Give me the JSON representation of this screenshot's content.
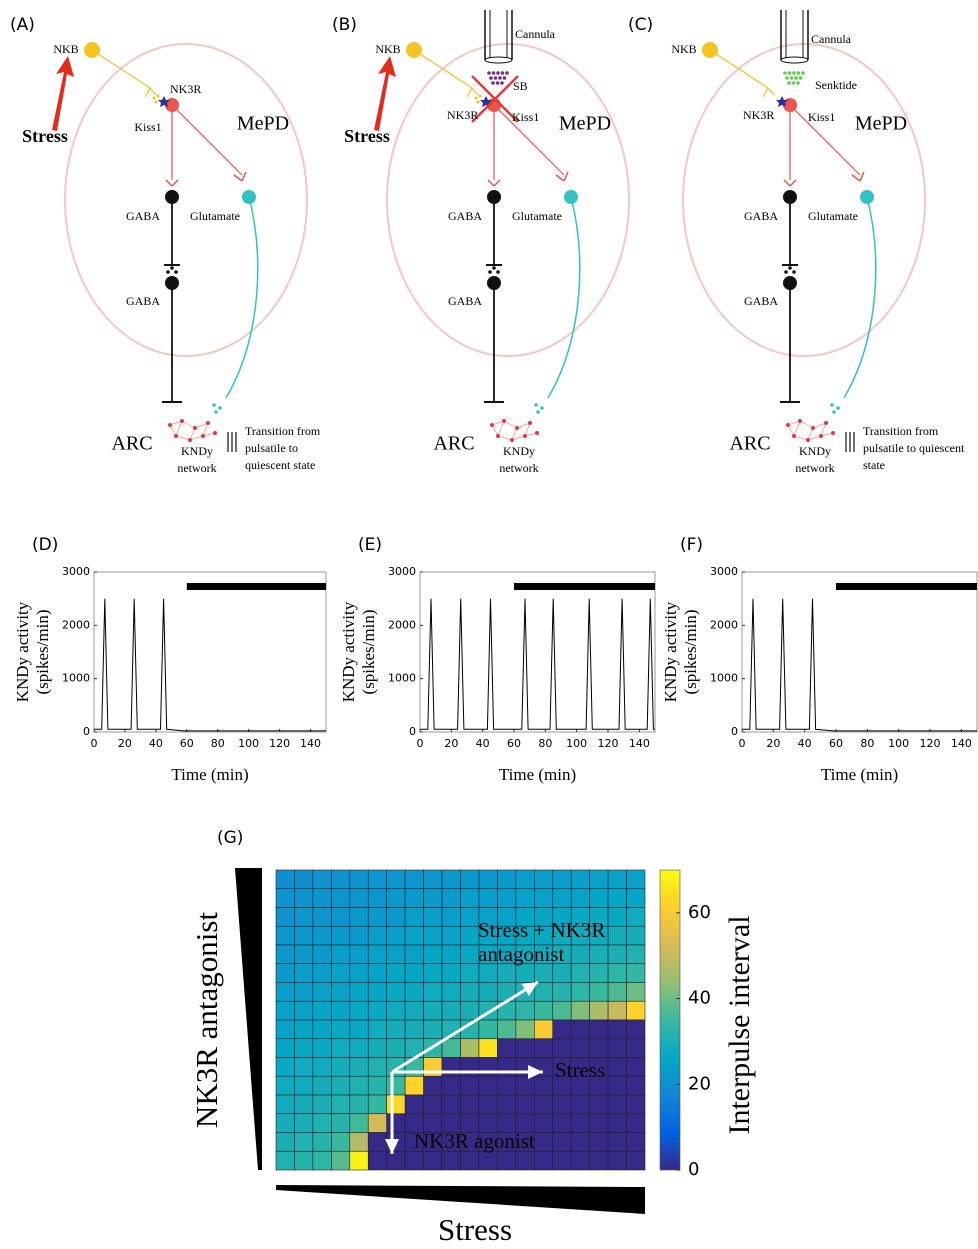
{
  "diagrams": [
    {
      "label": "(A)",
      "nkb": "NKB",
      "stress": "Stress",
      "nk3r": "NK3R",
      "kiss1": "Kiss1",
      "mepd": "MePD",
      "gaba_top": "GABA",
      "glutamate": "Glutamate",
      "gaba_bottom": "GABA",
      "arc": "ARC",
      "kndy": [
        "KNDy",
        "network"
      ],
      "transition": [
        "Transition from",
        "pulsatile to",
        "quiescent state"
      ]
    },
    {
      "label": "(B)",
      "nkb": "NKB",
      "stress": "Stress",
      "cannula": "Cannula",
      "drug": "SB",
      "nk3r": "NK3R",
      "kiss1": "Kiss1",
      "mepd": "MePD",
      "gaba_top": "GABA",
      "glutamate": "Glutamate",
      "gaba_bottom": "GABA",
      "arc": "ARC",
      "kndy": [
        "KNDy",
        "network"
      ]
    },
    {
      "label": "(C)",
      "nkb": "NKB",
      "cannula": "Cannula",
      "drug": "Senktide",
      "nk3r": "NK3R",
      "kiss1": "Kiss1",
      "mepd": "MePD",
      "gaba_top": "GABA",
      "glutamate": "Glutamate",
      "gaba_bottom": "GABA",
      "arc": "ARC",
      "kndy": [
        "KNDy",
        "network"
      ],
      "transition": [
        "Transition from",
        "pulsatile to quiescent",
        "state"
      ]
    }
  ],
  "chart_data": [
    {
      "type": "line",
      "label": "(D)",
      "xlabel": "Time (min)",
      "ylabel": [
        "KNDy activity",
        "(spikes/min)"
      ],
      "x": [
        0,
        5,
        7,
        9,
        24,
        26,
        28,
        43,
        45,
        47,
        58,
        150
      ],
      "values": [
        50,
        50,
        2500,
        50,
        50,
        2500,
        50,
        50,
        2500,
        50,
        20,
        20
      ],
      "color": "#000000",
      "stimulus_span": [
        60,
        150
      ],
      "xlim": [
        0,
        150
      ],
      "ylim": [
        0,
        3000
      ],
      "xticks": [
        0,
        20,
        40,
        60,
        80,
        100,
        120,
        140
      ],
      "yticks": [
        0,
        1000,
        2000,
        3000
      ]
    },
    {
      "type": "line",
      "label": "(E)",
      "xlabel": "Time (min)",
      "ylabel": [
        "KNDy activity",
        "(spikes/min)"
      ],
      "x": [
        0,
        5,
        7,
        9,
        24,
        26,
        28,
        43,
        45,
        47,
        65,
        67,
        69,
        83,
        85,
        87,
        106,
        108,
        110,
        127,
        129,
        131,
        145,
        147,
        149,
        150
      ],
      "values": [
        50,
        50,
        2500,
        50,
        50,
        2500,
        50,
        50,
        2500,
        50,
        50,
        2500,
        50,
        50,
        2500,
        50,
        50,
        2500,
        50,
        50,
        2500,
        50,
        50,
        2500,
        50,
        50
      ],
      "color": "#000000",
      "stimulus_span": [
        60,
        150
      ],
      "xlim": [
        0,
        150
      ],
      "ylim": [
        0,
        3000
      ],
      "xticks": [
        0,
        20,
        40,
        60,
        80,
        100,
        120,
        140
      ],
      "yticks": [
        0,
        1000,
        2000,
        3000
      ]
    },
    {
      "type": "line",
      "label": "(F)",
      "xlabel": "Time (min)",
      "ylabel": [
        "KNDy activity",
        "(spikes/min)"
      ],
      "x": [
        0,
        5,
        7,
        9,
        24,
        26,
        28,
        43,
        45,
        47,
        58,
        150
      ],
      "values": [
        50,
        50,
        2500,
        50,
        50,
        2500,
        50,
        50,
        2500,
        50,
        20,
        20
      ],
      "color": "#000000",
      "stimulus_span": [
        60,
        150
      ],
      "xlim": [
        0,
        150
      ],
      "ylim": [
        0,
        3000
      ],
      "xticks": [
        0,
        20,
        40,
        60,
        80,
        100,
        120,
        140
      ],
      "yticks": [
        0,
        1000,
        2000,
        3000
      ]
    },
    {
      "type": "heatmap",
      "label": "(G)",
      "xlabel": "Stress",
      "ylabel": "NK3R antagonist",
      "colorbar_label": "Interpulse interval",
      "zlim": [
        0,
        70
      ],
      "zticks": [
        0,
        20,
        40,
        60
      ],
      "annotations": [
        [
          "Stress + NK3R",
          "antagonist"
        ],
        [
          "Stress"
        ],
        [
          "NK3R agonist"
        ]
      ],
      "values": [
        [
          20,
          20,
          21,
          21,
          21,
          22,
          22,
          22,
          22,
          23,
          23,
          23,
          23,
          24,
          24,
          24,
          24,
          25,
          25,
          25
        ],
        [
          21,
          21,
          21,
          22,
          22,
          22,
          23,
          23,
          23,
          23,
          24,
          24,
          24,
          25,
          25,
          25,
          25,
          26,
          26,
          26
        ],
        [
          21,
          22,
          22,
          22,
          23,
          23,
          23,
          24,
          24,
          24,
          25,
          25,
          25,
          26,
          26,
          26,
          27,
          27,
          27,
          28
        ],
        [
          22,
          22,
          23,
          23,
          23,
          24,
          24,
          25,
          25,
          25,
          26,
          26,
          26,
          27,
          27,
          28,
          28,
          28,
          29,
          29
        ],
        [
          23,
          23,
          23,
          24,
          24,
          25,
          25,
          25,
          26,
          26,
          27,
          27,
          27,
          28,
          28,
          29,
          29,
          30,
          30,
          31
        ],
        [
          23,
          24,
          24,
          25,
          25,
          25,
          26,
          26,
          27,
          27,
          28,
          28,
          29,
          29,
          30,
          30,
          31,
          32,
          33,
          34
        ],
        [
          24,
          24,
          25,
          25,
          26,
          26,
          27,
          27,
          28,
          28,
          29,
          29,
          30,
          31,
          31,
          32,
          33,
          35,
          37,
          40
        ],
        [
          25,
          25,
          26,
          26,
          27,
          27,
          28,
          28,
          29,
          29,
          30,
          31,
          32,
          33,
          35,
          37,
          42,
          47,
          50,
          62
        ],
        [
          25,
          26,
          26,
          27,
          27,
          28,
          29,
          29,
          30,
          31,
          32,
          34,
          37,
          42,
          60,
          0,
          0,
          0,
          0,
          0
        ],
        [
          26,
          27,
          27,
          28,
          28,
          29,
          30,
          31,
          33,
          36,
          47,
          65,
          0,
          0,
          0,
          0,
          0,
          0,
          0,
          0
        ],
        [
          27,
          28,
          28,
          29,
          30,
          31,
          32,
          35,
          60,
          0,
          0,
          0,
          0,
          0,
          0,
          0,
          0,
          0,
          0,
          0
        ],
        [
          28,
          28,
          29,
          30,
          31,
          32,
          35,
          62,
          0,
          0,
          0,
          0,
          0,
          0,
          0,
          0,
          0,
          0,
          0,
          0
        ],
        [
          28,
          29,
          30,
          31,
          32,
          34,
          63,
          0,
          0,
          0,
          0,
          0,
          0,
          0,
          0,
          0,
          0,
          0,
          0,
          0
        ],
        [
          29,
          30,
          31,
          32,
          36,
          52,
          0,
          0,
          0,
          0,
          0,
          0,
          0,
          0,
          0,
          0,
          0,
          0,
          0,
          0
        ],
        [
          30,
          31,
          32,
          35,
          48,
          0,
          0,
          0,
          0,
          0,
          0,
          0,
          0,
          0,
          0,
          0,
          0,
          0,
          0,
          0
        ],
        [
          31,
          32,
          33,
          38,
          68,
          0,
          0,
          0,
          0,
          0,
          0,
          0,
          0,
          0,
          0,
          0,
          0,
          0,
          0,
          0
        ]
      ]
    }
  ]
}
